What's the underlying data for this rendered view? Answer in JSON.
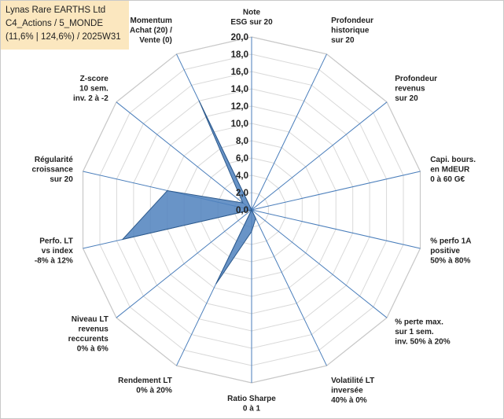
{
  "title_box": {
    "line1": "Lynas Rare EARTHS Ltd",
    "line2": "C4_Actions / 5_MONDE",
    "line3": "(11,6% | 124,6%) / 2025W31"
  },
  "chart_data": {
    "type": "radar",
    "rmin": 0,
    "rmax": 20,
    "grid_step": 2,
    "tick_labels": [
      "0,0",
      "2,0",
      "4,0",
      "6,0",
      "8,0",
      "10,0",
      "12,0",
      "14,0",
      "16,0",
      "18,0",
      "20,0"
    ],
    "axes": [
      [
        "Note",
        "ESG sur 20"
      ],
      [
        "Profondeur",
        "historique",
        "sur 20"
      ],
      [
        "Profondeur",
        "revenus",
        "sur 20"
      ],
      [
        "Capi. bours.",
        "en MdEUR",
        "0 à 60 G€"
      ],
      [
        "% perfo 1A",
        "positive",
        "50% à 80%"
      ],
      [
        "% perte max.",
        "sur 1 sem.",
        "inv. 50% à 20%"
      ],
      [
        "Volatilité LT",
        "inversée",
        "40% à 0%"
      ],
      [
        "Ratio Sharpe",
        "0 à 1"
      ],
      [
        "Rendement LT",
        "0% à 20%"
      ],
      [
        "Niveau LT",
        "revenus",
        "reccurents",
        "0% à 6%"
      ],
      [
        "Perfo. LT",
        "vs index",
        "-8% à 12%"
      ],
      [
        "Régularité",
        "croissance",
        "sur 20"
      ],
      [
        "Z-score",
        "10 sem.",
        "inv. 2 à -2"
      ],
      [
        "Momentum",
        "Achat (20) /",
        "Vente (0)"
      ]
    ],
    "series": [
      {
        "values": [
          0,
          0,
          0,
          0,
          0,
          0,
          1.1,
          2.5,
          9.5,
          0,
          15.3,
          10.0,
          1.3,
          14.0
        ],
        "color": "#4f81bd"
      }
    ],
    "grid": true
  }
}
